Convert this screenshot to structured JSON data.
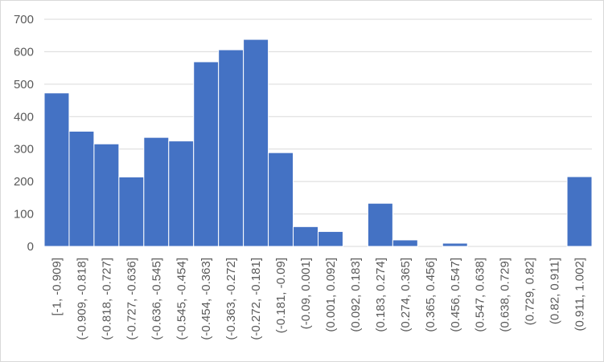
{
  "chart_data": {
    "type": "bar",
    "categories": [
      "[-1, -0.909]",
      "(-0.909, -0.818]",
      "(-0.818, -0.727]",
      "(-0.727, -0.636]",
      "(-0.636, -0.545]",
      "(-0.545, -0.454]",
      "(-0.454, -0.363]",
      "(-0.363, -0.272]",
      "(-0.272, -0.181]",
      "(-0.181, -0.09]",
      "(-0.09, 0.001]",
      "(0.001, 0.092]",
      "(0.092, 0.183]",
      "(0.183, 0.274]",
      "(0.274, 0.365]",
      "(0.365, 0.456]",
      "(0.456, 0.547]",
      "(0.547, 0.638]",
      "(0.638, 0.729]",
      "(0.729, 0.82]",
      "(0.82, 0.911]",
      "(0.911, 1.002]"
    ],
    "values": [
      473,
      355,
      316,
      214,
      336,
      325,
      569,
      606,
      638,
      289,
      61,
      46,
      0,
      133,
      20,
      0,
      10,
      0,
      0,
      0,
      0,
      215
    ],
    "ylim": [
      0,
      700
    ],
    "yticks": [
      0,
      100,
      200,
      300,
      400,
      500,
      600,
      700
    ],
    "grid": true,
    "bar_gap": false,
    "colors": {
      "bar": "#4472c4",
      "grid": "#d9d9d9",
      "text": "#595959"
    }
  }
}
